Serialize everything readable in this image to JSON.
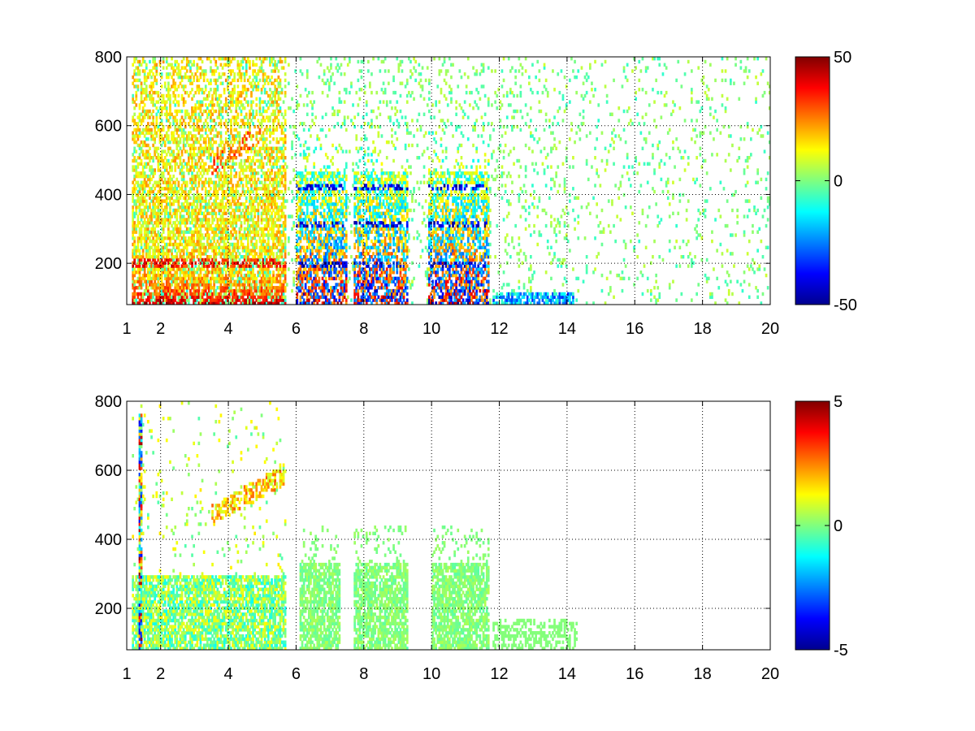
{
  "chart_data": [
    {
      "type": "heatmap",
      "title": "",
      "xlabel": "",
      "ylabel": "",
      "xlim": [
        1,
        20
      ],
      "ylim": [
        80,
        800
      ],
      "x_ticks": [
        1,
        2,
        4,
        6,
        8,
        10,
        12,
        14,
        16,
        18,
        20
      ],
      "x_tick_labels": [
        "1",
        "2",
        "4",
        "6",
        "8",
        "10",
        "12",
        "14",
        "16",
        "18",
        "20"
      ],
      "y_ticks": [
        200,
        400,
        600,
        800
      ],
      "y_tick_labels": [
        "200",
        "400",
        "600",
        "800"
      ],
      "grid": true,
      "colormap": "jet",
      "colorbar": {
        "limits": [
          -50,
          50
        ],
        "ticks": [
          -50,
          0,
          50
        ],
        "tick_labels": [
          "-50",
          "0",
          "50"
        ]
      }
    },
    {
      "type": "heatmap",
      "title": "",
      "xlabel": "",
      "ylabel": "",
      "xlim": [
        1,
        20
      ],
      "ylim": [
        80,
        800
      ],
      "x_ticks": [
        1,
        2,
        4,
        6,
        8,
        10,
        12,
        14,
        16,
        18,
        20
      ],
      "x_tick_labels": [
        "1",
        "2",
        "4",
        "6",
        "8",
        "10",
        "12",
        "14",
        "16",
        "18",
        "20"
      ],
      "y_ticks": [
        200,
        400,
        600,
        800
      ],
      "y_tick_labels": [
        "200",
        "400",
        "600",
        "800"
      ],
      "grid": true,
      "colormap": "jet",
      "colorbar": {
        "limits": [
          -5,
          5
        ],
        "ticks": [
          -5,
          0,
          5
        ],
        "tick_labels": [
          "-5",
          "0",
          "5"
        ]
      }
    }
  ]
}
